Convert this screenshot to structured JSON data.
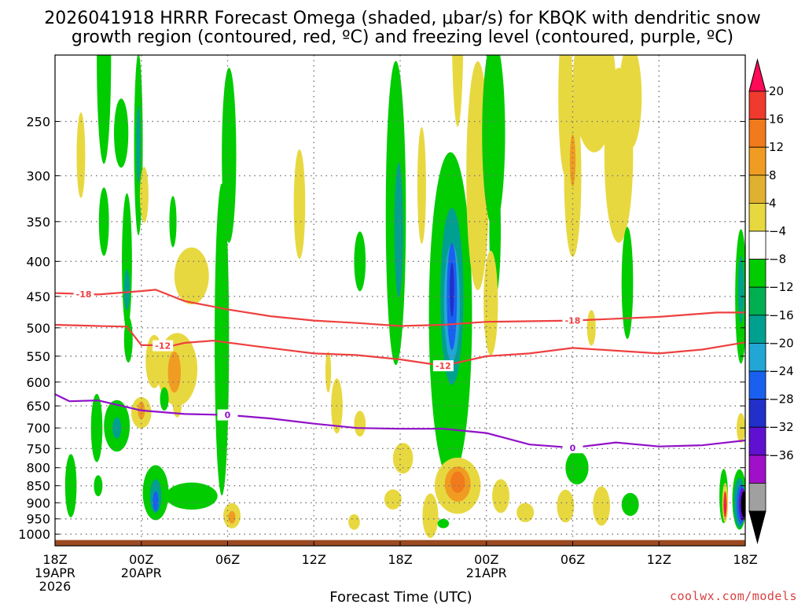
{
  "title_line1": "2026041918 HRRR Forecast Omega (shaded, μbar/s) for KBQK with dendritic snow",
  "title_line2": "growth region (contoured, red, ºC) and freezing level (contoured, purple, ºC)",
  "credit": "coolwx.com/models",
  "chart_data": {
    "type": "heatmap",
    "xlabel": "Forecast Time (UTC)",
    "ylabel": "",
    "x_range_hours": [
      0,
      48
    ],
    "y_range_hPa": [
      200,
      1040
    ],
    "y_scale": "log-pressure",
    "grid": true,
    "x_ticks": [
      {
        "hour": 0,
        "l1": "18Z",
        "l2": "19APR",
        "l3": "2026"
      },
      {
        "hour": 6,
        "l1": "00Z",
        "l2": "20APR",
        "l3": ""
      },
      {
        "hour": 12,
        "l1": "06Z",
        "l2": "",
        "l3": ""
      },
      {
        "hour": 18,
        "l1": "12Z",
        "l2": "",
        "l3": ""
      },
      {
        "hour": 24,
        "l1": "18Z",
        "l2": "",
        "l3": ""
      },
      {
        "hour": 30,
        "l1": "00Z",
        "l2": "21APR",
        "l3": ""
      },
      {
        "hour": 36,
        "l1": "06Z",
        "l2": "",
        "l3": ""
      },
      {
        "hour": 42,
        "l1": "12Z",
        "l2": "",
        "l3": ""
      },
      {
        "hour": 48,
        "l1": "18Z",
        "l2": "",
        "l3": ""
      }
    ],
    "y_ticks": [
      250,
      300,
      350,
      400,
      450,
      500,
      550,
      600,
      650,
      700,
      750,
      800,
      850,
      900,
      950,
      1000
    ],
    "colorbar": {
      "labels": [
        "20",
        "16",
        "12",
        "8",
        "4",
        "−4",
        "−8",
        "−12",
        "−16",
        "−20",
        "−24",
        "−28",
        "−32",
        "−36"
      ],
      "colors": [
        "#ff0a56",
        "#f03a2e",
        "#f07a1c",
        "#f09c22",
        "#e0b030",
        "#e8d840",
        "#ffffff",
        "#00cc00",
        "#00b050",
        "#00a090",
        "#22a6d6",
        "#1a60f0",
        "#2030c8",
        "#6010d0",
        "#a010c8",
        "#a0a0a0",
        "#000000"
      ]
    },
    "dgz_contours": [
      {
        "value": -18,
        "label": "-18",
        "color": "#ee4040",
        "points": [
          [
            0,
            445
          ],
          [
            3,
            447
          ],
          [
            6,
            442
          ],
          [
            7,
            440
          ],
          [
            9,
            457
          ],
          [
            12,
            470
          ],
          [
            15,
            481
          ],
          [
            18,
            488
          ],
          [
            21,
            492
          ],
          [
            24,
            497
          ],
          [
            27,
            495
          ],
          [
            30,
            490
          ],
          [
            36,
            488
          ],
          [
            42,
            482
          ],
          [
            46,
            475
          ],
          [
            48,
            475
          ]
        ]
      },
      {
        "value": -12,
        "label": "-12",
        "color": "#ee4040",
        "points": [
          [
            0,
            495
          ],
          [
            3,
            497
          ],
          [
            5,
            498
          ],
          [
            6,
            530
          ],
          [
            7,
            530
          ],
          [
            8,
            532
          ],
          [
            9,
            526
          ],
          [
            11,
            522
          ],
          [
            14,
            532
          ],
          [
            18,
            545
          ],
          [
            21,
            548
          ],
          [
            24,
            556
          ],
          [
            27,
            568
          ],
          [
            30,
            550
          ],
          [
            33,
            545
          ],
          [
            36,
            535
          ],
          [
            39,
            540
          ],
          [
            42,
            545
          ],
          [
            45,
            538
          ],
          [
            48,
            525
          ]
        ]
      }
    ],
    "freezing_level": {
      "value": 0,
      "label": "0",
      "color": "#9010c8",
      "points": [
        [
          0,
          625
        ],
        [
          1,
          640
        ],
        [
          3,
          638
        ],
        [
          6,
          660
        ],
        [
          9,
          668
        ],
        [
          12,
          670
        ],
        [
          15,
          678
        ],
        [
          18,
          690
        ],
        [
          21,
          700
        ],
        [
          24,
          702
        ],
        [
          27,
          702
        ],
        [
          30,
          712
        ],
        [
          33,
          740
        ],
        [
          36,
          748
        ],
        [
          39,
          735
        ],
        [
          42,
          745
        ],
        [
          45,
          742
        ],
        [
          48,
          730
        ]
      ]
    },
    "omega_cells": [
      {
        "t": 3.4,
        "p": 200,
        "rx": 0.5,
        "rp": 70,
        "fill": "#00cc00"
      },
      {
        "t": 3.4,
        "p": 230,
        "rx": 0.35,
        "rp": 50,
        "fill": "#00cc00"
      },
      {
        "t": 3.4,
        "p": 350,
        "rx": 0.35,
        "rp": 40,
        "fill": "#00cc00"
      },
      {
        "t": 4.6,
        "p": 260,
        "rx": 0.5,
        "rp": 30,
        "fill": "#00cc00"
      },
      {
        "t": 1.8,
        "p": 280,
        "rx": 0.3,
        "rp": 40,
        "fill": "#e8d840"
      },
      {
        "t": 5.0,
        "p": 400,
        "rx": 0.35,
        "rp": 90,
        "fill": "#00cc00"
      },
      {
        "t": 5.1,
        "p": 520,
        "rx": 0.3,
        "rp": 40,
        "fill": "#00cc00"
      },
      {
        "t": 5.0,
        "p": 440,
        "rx": 0.2,
        "rp": 30,
        "fill": "#00a090"
      },
      {
        "t": 5.8,
        "p": 270,
        "rx": 0.3,
        "rp": 80,
        "fill": "#00cc00"
      },
      {
        "t": 5.8,
        "p": 270,
        "rx": 0.15,
        "rp": 35,
        "fill": "#00a090"
      },
      {
        "t": 6.2,
        "p": 320,
        "rx": 0.3,
        "rp": 30,
        "fill": "#e8d840"
      },
      {
        "t": 8.2,
        "p": 350,
        "rx": 0.25,
        "rp": 30,
        "fill": "#00cc00"
      },
      {
        "t": 9.5,
        "p": 420,
        "rx": 1.2,
        "rp": 40,
        "fill": "#e8d840"
      },
      {
        "t": 6.9,
        "p": 560,
        "rx": 0.6,
        "rp": 50,
        "fill": "#e8d840"
      },
      {
        "t": 8.5,
        "p": 575,
        "rx": 1.4,
        "rp": 70,
        "fill": "#e8d840"
      },
      {
        "t": 8.3,
        "p": 580,
        "rx": 0.45,
        "rp": 40,
        "fill": "#f09c22"
      },
      {
        "t": 6.0,
        "p": 665,
        "rx": 0.7,
        "rp": 35,
        "fill": "#e8d840"
      },
      {
        "t": 6.0,
        "p": 660,
        "rx": 0.25,
        "rp": 20,
        "fill": "#f09c22"
      },
      {
        "t": 7.6,
        "p": 635,
        "rx": 0.3,
        "rp": 25,
        "fill": "#00cc00"
      },
      {
        "t": 8.5,
        "p": 650,
        "rx": 0.3,
        "rp": 25,
        "fill": "#e8d840"
      },
      {
        "t": 4.3,
        "p": 695,
        "rx": 0.9,
        "rp": 60,
        "fill": "#00cc00"
      },
      {
        "t": 4.3,
        "p": 700,
        "rx": 0.3,
        "rp": 25,
        "fill": "#00a090"
      },
      {
        "t": 1.1,
        "p": 850,
        "rx": 0.4,
        "rp": 90,
        "fill": "#00cc00"
      },
      {
        "t": 2.9,
        "p": 700,
        "rx": 0.4,
        "rp": 80,
        "fill": "#00cc00"
      },
      {
        "t": 3.0,
        "p": 850,
        "rx": 0.3,
        "rp": 30,
        "fill": "#00cc00"
      },
      {
        "t": 7.0,
        "p": 870,
        "rx": 0.9,
        "rp": 80,
        "fill": "#00cc00"
      },
      {
        "t": 7.0,
        "p": 880,
        "rx": 0.4,
        "rp": 50,
        "fill": "#00a090"
      },
      {
        "t": 7.0,
        "p": 895,
        "rx": 0.2,
        "rp": 30,
        "fill": "#1a60f0"
      },
      {
        "t": 9.5,
        "p": 880,
        "rx": 1.8,
        "rp": 40,
        "fill": "#00cc00"
      },
      {
        "t": 11.6,
        "p": 520,
        "rx": 0.5,
        "rp": 250,
        "fill": "#00cc00"
      },
      {
        "t": 12.1,
        "p": 280,
        "rx": 0.5,
        "rp": 80,
        "fill": "#00cc00"
      },
      {
        "t": 12.3,
        "p": 940,
        "rx": 0.6,
        "rp": 40,
        "fill": "#e8d840"
      },
      {
        "t": 12.3,
        "p": 945,
        "rx": 0.25,
        "rp": 20,
        "fill": "#f09c22"
      },
      {
        "t": 17.0,
        "p": 330,
        "rx": 0.4,
        "rp": 60,
        "fill": "#e8d840"
      },
      {
        "t": 19.0,
        "p": 580,
        "rx": 0.2,
        "rp": 40,
        "fill": "#e8d840"
      },
      {
        "t": 19.6,
        "p": 650,
        "rx": 0.4,
        "rp": 60,
        "fill": "#e8d840"
      },
      {
        "t": 21.2,
        "p": 400,
        "rx": 0.4,
        "rp": 40,
        "fill": "#00cc00"
      },
      {
        "t": 21.2,
        "p": 690,
        "rx": 0.4,
        "rp": 30,
        "fill": "#e8d840"
      },
      {
        "t": 20.8,
        "p": 960,
        "rx": 0.4,
        "rp": 25,
        "fill": "#e8d840"
      },
      {
        "t": 23.7,
        "p": 340,
        "rx": 0.7,
        "rp": 160,
        "fill": "#00cc00"
      },
      {
        "t": 23.9,
        "p": 360,
        "rx": 0.3,
        "rp": 80,
        "fill": "#00a090"
      },
      {
        "t": 24.2,
        "p": 775,
        "rx": 0.7,
        "rp": 40,
        "fill": "#e8d840"
      },
      {
        "t": 23.5,
        "p": 890,
        "rx": 0.6,
        "rp": 30,
        "fill": "#e8d840"
      },
      {
        "t": 25.5,
        "p": 310,
        "rx": 0.3,
        "rp": 60,
        "fill": "#e8d840"
      },
      {
        "t": 27.5,
        "p": 480,
        "rx": 1.5,
        "rp": 240,
        "fill": "#00cc00"
      },
      {
        "t": 27.6,
        "p": 450,
        "rx": 0.8,
        "rp": 130,
        "fill": "#00a090"
      },
      {
        "t": 27.6,
        "p": 460,
        "rx": 0.55,
        "rp": 90,
        "fill": "#22a6d6"
      },
      {
        "t": 27.6,
        "p": 450,
        "rx": 0.35,
        "rp": 80,
        "fill": "#1a60f0"
      },
      {
        "t": 27.6,
        "p": 440,
        "rx": 0.15,
        "rp": 40,
        "fill": "#2030c8"
      },
      {
        "t": 27.5,
        "p": 690,
        "rx": 0.6,
        "rp": 80,
        "fill": "#00cc00"
      },
      {
        "t": 29.4,
        "p": 300,
        "rx": 0.8,
        "rp": 110,
        "fill": "#e8d840"
      },
      {
        "t": 28.0,
        "p": 180,
        "rx": 0.4,
        "rp": 60,
        "fill": "#e8d840"
      },
      {
        "t": 30.5,
        "p": 260,
        "rx": 0.8,
        "rp": 80,
        "fill": "#00cc00"
      },
      {
        "t": 30.6,
        "p": 360,
        "rx": 0.4,
        "rp": 80,
        "fill": "#00cc00"
      },
      {
        "t": 30.3,
        "p": 460,
        "rx": 0.5,
        "rp": 80,
        "fill": "#e8d840"
      },
      {
        "t": 26.1,
        "p": 940,
        "rx": 0.55,
        "rp": 70,
        "fill": "#e8d840"
      },
      {
        "t": 28.0,
        "p": 850,
        "rx": 1.6,
        "rp": 80,
        "fill": "#e8d840"
      },
      {
        "t": 28.0,
        "p": 845,
        "rx": 0.9,
        "rp": 50,
        "fill": "#f09c22"
      },
      {
        "t": 28.0,
        "p": 840,
        "rx": 0.5,
        "rp": 30,
        "fill": "#f07a1c"
      },
      {
        "t": 27.0,
        "p": 965,
        "rx": 0.4,
        "rp": 15,
        "fill": "#00cc00"
      },
      {
        "t": 31.0,
        "p": 880,
        "rx": 0.6,
        "rp": 50,
        "fill": "#e8d840"
      },
      {
        "t": 32.7,
        "p": 930,
        "rx": 0.6,
        "rp": 30,
        "fill": "#e8d840"
      },
      {
        "t": 35.5,
        "p": 230,
        "rx": 0.5,
        "rp": 60,
        "fill": "#e8d840"
      },
      {
        "t": 36.0,
        "p": 300,
        "rx": 0.6,
        "rp": 80,
        "fill": "#e8d840"
      },
      {
        "t": 36.0,
        "p": 285,
        "rx": 0.2,
        "rp": 25,
        "fill": "#f09c22"
      },
      {
        "t": 37.5,
        "p": 220,
        "rx": 1.5,
        "rp": 50,
        "fill": "#e8d840"
      },
      {
        "t": 40.0,
        "p": 230,
        "rx": 0.8,
        "rp": 40,
        "fill": "#e8d840"
      },
      {
        "t": 39.2,
        "p": 280,
        "rx": 1.0,
        "rp": 80,
        "fill": "#e8d840"
      },
      {
        "t": 39.8,
        "p": 430,
        "rx": 0.4,
        "rp": 80,
        "fill": "#00cc00"
      },
      {
        "t": 37.3,
        "p": 500,
        "rx": 0.3,
        "rp": 30,
        "fill": "#e8d840"
      },
      {
        "t": 36.3,
        "p": 800,
        "rx": 0.8,
        "rp": 45,
        "fill": "#00cc00"
      },
      {
        "t": 35.5,
        "p": 910,
        "rx": 0.6,
        "rp": 50,
        "fill": "#e8d840"
      },
      {
        "t": 38.0,
        "p": 910,
        "rx": 0.6,
        "rp": 60,
        "fill": "#e8d840"
      },
      {
        "t": 40.0,
        "p": 905,
        "rx": 0.6,
        "rp": 35,
        "fill": "#00cc00"
      },
      {
        "t": 47.7,
        "p": 450,
        "rx": 0.4,
        "rp": 100,
        "fill": "#00cc00"
      },
      {
        "t": 47.7,
        "p": 440,
        "rx": 0.2,
        "rp": 50,
        "fill": "#00a090"
      },
      {
        "t": 47.7,
        "p": 700,
        "rx": 0.3,
        "rp": 35,
        "fill": "#e8d840"
      },
      {
        "t": 47.6,
        "p": 890,
        "rx": 0.5,
        "rp": 90,
        "fill": "#00cc00"
      },
      {
        "t": 47.6,
        "p": 900,
        "rx": 0.4,
        "rp": 75,
        "fill": "#00a090"
      },
      {
        "t": 47.7,
        "p": 905,
        "rx": 0.3,
        "rp": 60,
        "fill": "#1a60f0"
      },
      {
        "t": 47.8,
        "p": 905,
        "rx": 0.25,
        "rp": 50,
        "fill": "#6010d0"
      },
      {
        "t": 47.9,
        "p": 905,
        "rx": 0.2,
        "rp": 40,
        "fill": "#000000"
      },
      {
        "t": 46.5,
        "p": 880,
        "rx": 0.3,
        "rp": 80,
        "fill": "#00cc00"
      },
      {
        "t": 46.6,
        "p": 900,
        "rx": 0.2,
        "rp": 60,
        "fill": "#e8d840"
      },
      {
        "t": 46.6,
        "p": 905,
        "rx": 0.12,
        "rp": 40,
        "fill": "#f03a2e"
      },
      {
        "t": 46.6,
        "p": 910,
        "rx": 0.06,
        "rp": 20,
        "fill": "#ff0a56"
      }
    ],
    "terrain": {
      "color": "#9b4a22",
      "top_hPa": 1020
    }
  }
}
